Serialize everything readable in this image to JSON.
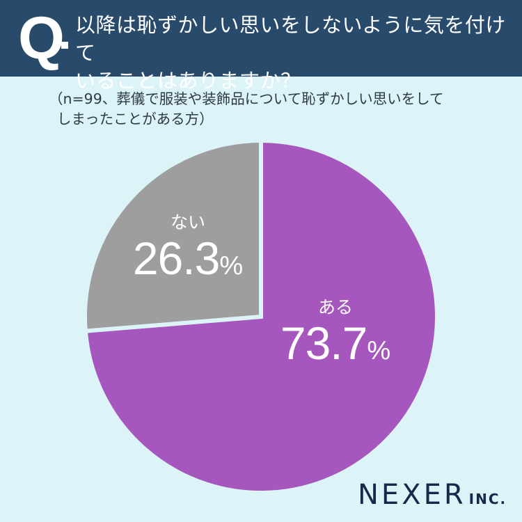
{
  "header": {
    "q_mark": "Q",
    "question_line1": "以降は恥ずかしい思いをしないように気を付けて",
    "question_line2": "いることはありますか？"
  },
  "note": {
    "line1": "（n=99、葬儀で服装や装飾品について恥ずかしい思いをして",
    "line2": "しまったことがある方）"
  },
  "colors": {
    "header_bg": "#284a6b",
    "background": "#dcf3f8",
    "yes": "#a657bd",
    "no": "#9e9e9e"
  },
  "chart_data": {
    "type": "pie",
    "title": "以降は恥ずかしい思いをしないように気を付けていることはありますか？",
    "subtitle": "（n=99、葬儀で服装や装飾品について恥ずかしい思いをしてしまったことがある方）",
    "categories": [
      "ある",
      "ない"
    ],
    "values": [
      73.7,
      26.3
    ],
    "unit": "%",
    "colors": [
      "#a657bd",
      "#9e9e9e"
    ],
    "start_angle": "12 o'clock, clockwise",
    "legend": "none (labels inside slices)"
  },
  "slices": [
    {
      "label": "ある",
      "value": "73.7",
      "unit": "%"
    },
    {
      "label": "ない",
      "value": "26.3",
      "unit": "%"
    }
  ],
  "logo": {
    "main": "NEXER",
    "suffix": "INC."
  }
}
